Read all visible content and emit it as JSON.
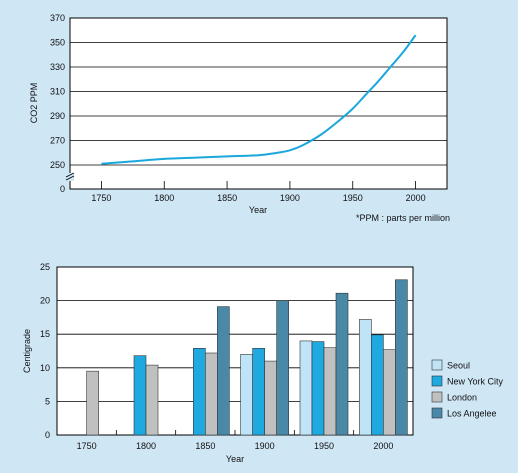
{
  "chart_data": [
    {
      "type": "line",
      "title": "",
      "xlabel": "Year",
      "ylabel": "CO2 PPM",
      "footnote": "*PPM : parts per million",
      "x_ticks": [
        1750,
        1800,
        1850,
        1900,
        1950,
        2000
      ],
      "y_ticks": [
        0,
        250,
        270,
        290,
        310,
        330,
        350,
        370
      ],
      "xlim": [
        1725,
        2025
      ],
      "ylim": [
        250,
        370
      ],
      "axis_break": true,
      "grid": "horizontal",
      "color": "#1aa7dc",
      "series": [
        {
          "x": [
            1750,
            1775,
            1800,
            1825,
            1850,
            1875,
            1890,
            1900,
            1910,
            1925,
            1940,
            1950,
            1960,
            1970,
            1980,
            1990,
            2000
          ],
          "y": [
            251,
            253,
            255,
            256,
            257,
            258,
            260,
            262,
            266,
            275,
            287,
            296,
            307,
            318,
            330,
            342,
            356
          ]
        }
      ]
    },
    {
      "type": "bar",
      "title": "",
      "xlabel": "Year",
      "ylabel": "Centigrade",
      "categories": [
        "1750",
        "1800",
        "1850",
        "1900",
        "1950",
        "2000"
      ],
      "y_ticks": [
        0,
        5,
        10,
        15,
        20,
        25
      ],
      "ylim": [
        0,
        25
      ],
      "grid": "horizontal",
      "legend_position": "right",
      "series": [
        {
          "name": "Seoul",
          "color": "#bfe3f7",
          "values": [
            null,
            null,
            null,
            12,
            14,
            17.2
          ]
        },
        {
          "name": "New York City",
          "color": "#1ea9e1",
          "values": [
            null,
            11.8,
            12.9,
            12.9,
            13.9,
            14.9
          ]
        },
        {
          "name": "London",
          "color": "#c0c0c0",
          "values": [
            9.5,
            10.4,
            12.2,
            11,
            13,
            12.7
          ]
        },
        {
          "name": "Los Angelee",
          "color": "#4a88a8",
          "values": [
            null,
            null,
            19.1,
            20,
            21.1,
            23.1
          ]
        }
      ]
    }
  ]
}
